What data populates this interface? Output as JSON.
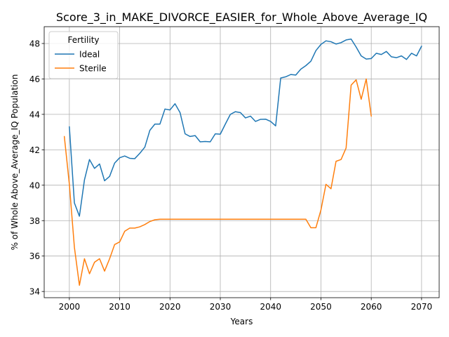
{
  "chart_data": {
    "type": "line",
    "title": "Score_3_in_MAKE_DIVORCE_EASIER_for_Whole_Above_Average_IQ",
    "xlabel": "Years",
    "ylabel": "% of Whole Above_Average_IQ Population",
    "xlim": [
      1995,
      2073.5
    ],
    "ylim": [
      33.65,
      48.95
    ],
    "xticks": [
      2000,
      2010,
      2020,
      2030,
      2040,
      2050,
      2060,
      2070
    ],
    "yticks": [
      34,
      36,
      38,
      40,
      42,
      44,
      46,
      48
    ],
    "grid": true,
    "legend": {
      "title": "Fertility",
      "placement": "top-left"
    },
    "series": [
      {
        "name": "Ideal",
        "color": "#1f77b4",
        "x": [
          2000,
          2001,
          2002,
          2003,
          2004,
          2005,
          2006,
          2007,
          2008,
          2009,
          2010,
          2011,
          2012,
          2013,
          2014,
          2015,
          2016,
          2017,
          2018,
          2019,
          2020,
          2021,
          2022,
          2023,
          2024,
          2025,
          2026,
          2027,
          2028,
          2029,
          2030,
          2031,
          2032,
          2033,
          2034,
          2035,
          2036,
          2037,
          2038,
          2039,
          2040,
          2041,
          2042,
          2043,
          2044,
          2045,
          2046,
          2047,
          2048,
          2049,
          2050,
          2051,
          2052,
          2053,
          2054,
          2055,
          2056,
          2057,
          2058,
          2059,
          2060,
          2061,
          2062,
          2063,
          2064,
          2065,
          2066,
          2067,
          2068,
          2069,
          2070
        ],
        "values": [
          43.3,
          39.0,
          38.25,
          40.3,
          41.45,
          40.95,
          41.2,
          40.25,
          40.5,
          41.25,
          41.55,
          41.65,
          41.52,
          41.5,
          41.8,
          42.15,
          43.1,
          43.45,
          43.45,
          44.3,
          44.25,
          44.6,
          44.1,
          42.9,
          42.75,
          42.8,
          42.45,
          42.47,
          42.45,
          42.9,
          42.88,
          43.45,
          44.0,
          44.15,
          44.1,
          43.8,
          43.9,
          43.6,
          43.72,
          43.73,
          43.6,
          43.35,
          46.05,
          46.12,
          46.25,
          46.22,
          46.55,
          46.75,
          47.0,
          47.6,
          47.95,
          48.15,
          48.1,
          47.97,
          48.05,
          48.2,
          48.25,
          47.8,
          47.3,
          47.12,
          47.15,
          47.45,
          47.38,
          47.55,
          47.25,
          47.2,
          47.3,
          47.1,
          47.45,
          47.3,
          47.85
        ]
      },
      {
        "name": "Sterile",
        "color": "#ff7f0e",
        "x": [
          1999,
          2000,
          2001,
          2002,
          2003,
          2004,
          2005,
          2006,
          2007,
          2008,
          2009,
          2010,
          2011,
          2012,
          2013,
          2014,
          2015,
          2016,
          2017,
          2018,
          2019,
          2020,
          2021,
          2022,
          2023,
          2024,
          2025,
          2026,
          2027,
          2028,
          2029,
          2030,
          2031,
          2032,
          2033,
          2034,
          2035,
          2036,
          2037,
          2038,
          2039,
          2040,
          2041,
          2042,
          2043,
          2044,
          2045,
          2046,
          2047,
          2048,
          2049,
          2050,
          2051,
          2052,
          2053,
          2054,
          2055,
          2056,
          2057,
          2058,
          2059,
          2060
        ],
        "values": [
          42.75,
          40.05,
          36.5,
          34.35,
          35.85,
          35.0,
          35.65,
          35.85,
          35.15,
          35.85,
          36.65,
          36.8,
          37.4,
          37.58,
          37.58,
          37.65,
          37.78,
          37.95,
          38.05,
          38.08,
          38.08,
          38.08,
          38.08,
          38.08,
          38.08,
          38.08,
          38.08,
          38.08,
          38.08,
          38.08,
          38.08,
          38.08,
          38.08,
          38.08,
          38.08,
          38.08,
          38.08,
          38.08,
          38.08,
          38.08,
          38.08,
          38.08,
          38.08,
          38.08,
          38.08,
          38.08,
          38.08,
          38.08,
          38.08,
          37.6,
          37.6,
          38.6,
          40.05,
          39.8,
          41.35,
          41.45,
          42.1,
          45.65,
          45.95,
          44.85,
          46.0,
          43.9
        ]
      }
    ]
  }
}
